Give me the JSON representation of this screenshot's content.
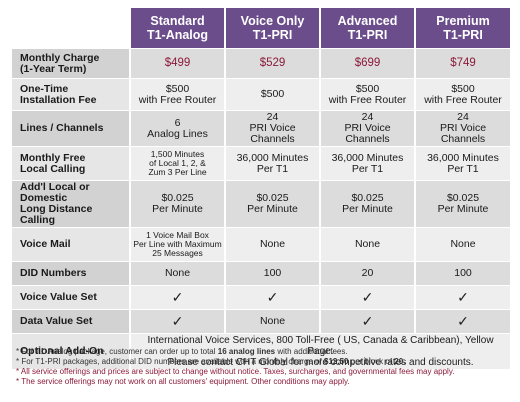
{
  "headers": [
    {
      "line1": "",
      "line2": ""
    },
    {
      "line1": "Standard",
      "line2": "T1-Analog"
    },
    {
      "line1": "Voice Only",
      "line2": "T1-PRI"
    },
    {
      "line1": "Advanced",
      "line2": "T1-PRI"
    },
    {
      "line1": "Premium",
      "line2": "T1-PRI"
    }
  ],
  "rows": {
    "monthly_charge": {
      "label1": "Monthly Charge",
      "label2": "(1-Year Term)",
      "values": [
        "$499",
        "$529",
        "$699",
        "$749"
      ]
    },
    "install_fee": {
      "label1": "One-Time",
      "label2": "Installation Fee",
      "values": [
        {
          "l1": "$500",
          "l2": "with Free Router"
        },
        {
          "l1": "$500",
          "l2": ""
        },
        {
          "l1": "$500",
          "l2": "with Free Router"
        },
        {
          "l1": "$500",
          "l2": "with Free Router"
        }
      ]
    },
    "lines": {
      "label1": "Lines / Channels",
      "label2": "",
      "values": [
        {
          "l1": "6",
          "l2": "Analog Lines"
        },
        {
          "l1": "24",
          "l2": "PRI Voice Channels"
        },
        {
          "l1": "24",
          "l2": "PRI Voice Channels"
        },
        {
          "l1": "24",
          "l2": "PRI Voice Channels"
        }
      ]
    },
    "local_calling": {
      "label1": "Monthly Free",
      "label2": "Local Calling",
      "values": [
        {
          "l1": "1,500 Minutes",
          "l2": "of Local 1, 2, &",
          "l3": "Zum 3 Per Line"
        },
        {
          "l1": "36,000 Minutes",
          "l2": "Per T1",
          "l3": ""
        },
        {
          "l1": "36,000 Minutes",
          "l2": "Per T1",
          "l3": ""
        },
        {
          "l1": "36,000 Minutes",
          "l2": "Per T1",
          "l3": ""
        }
      ]
    },
    "long_distance": {
      "label1": "Add'l Local or Domestic",
      "label2": "Long Distance Calling",
      "values": [
        {
          "l1": "$0.025",
          "l2": "Per Minute"
        },
        {
          "l1": "$0.025",
          "l2": "Per Minute"
        },
        {
          "l1": "$0.025",
          "l2": "Per Minute"
        },
        {
          "l1": "$0.025",
          "l2": "Per Minute"
        }
      ]
    },
    "voice_mail": {
      "label1": "Voice Mail",
      "first": {
        "l1": "1 Voice Mail Box",
        "l2": "Per Line with Maximum",
        "l3": "25 Messages"
      },
      "others": [
        "None",
        "None",
        "None"
      ]
    },
    "did": {
      "label1": "DID Numbers",
      "values": [
        "None",
        "100",
        "20",
        "100"
      ]
    },
    "voice_value": {
      "label1": "Voice Value Set",
      "values": [
        "✓",
        "✓",
        "✓",
        "✓"
      ]
    },
    "data_value": {
      "label1": "Data Value Set",
      "values": [
        "✓",
        "None",
        "✓",
        "✓"
      ]
    },
    "addon": {
      "label1": "Optional Add-On",
      "l1": "International Voice Services, 800 Toll-Free ( US, Canada & Caribbean), Yellow Page.",
      "l2": "Please contact CHT Global for more competitive rates and discounts."
    }
  },
  "notes": {
    "n1a": "* For T1-Analog package, customer can order up to total ",
    "n1b": "16 analog lines",
    "n1c": " with additional fees.",
    "n2a": "* For T1-PRI packages, additional DID numbers are available with a monthly charge of ",
    "n2b": "$12.50",
    "n2c": " per block of ",
    "n2d": "20",
    "n2e": ".",
    "n3": "* All service offerings and prices are subject to change without notice. Taxes, surcharges, and governmental fees may apply.",
    "n4": "* The service offerings may not work on all customers' equipment. Other conditions may apply."
  },
  "colors": {
    "header_bg": "#6b4d8c",
    "price": "#8b1a3b",
    "row_dark": "#dcdcdc",
    "row_light": "#eeeeee"
  }
}
